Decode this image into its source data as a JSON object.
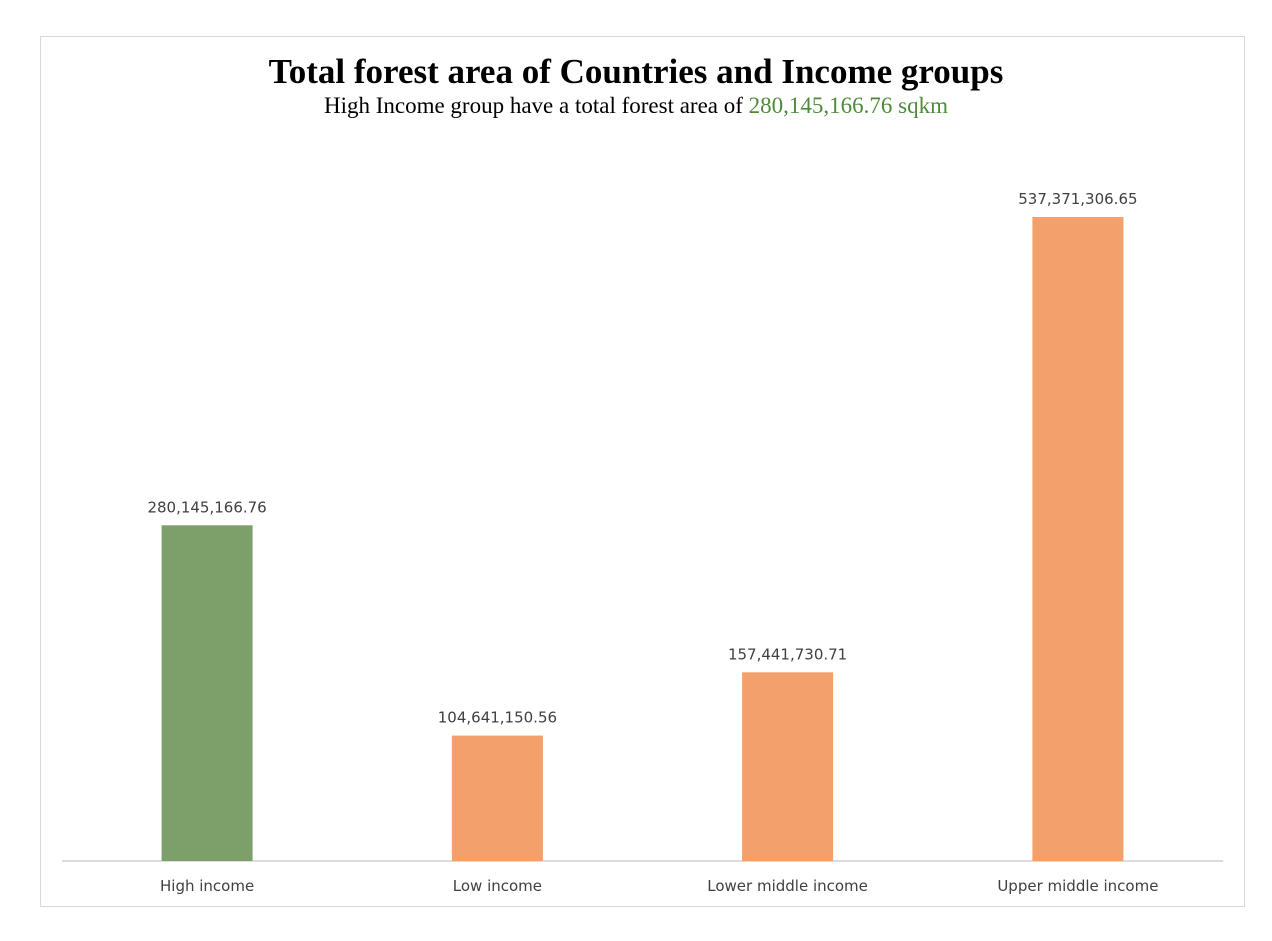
{
  "chart_data": {
    "type": "bar",
    "title": "Total forest area of Countries and Income groups",
    "subtitle": {
      "prefix": "High Income group have a total forest area of",
      "highlight": "280,145,166.76 sqkm"
    },
    "categories": [
      "High income",
      "Low income",
      "Lower middle income",
      "Upper middle income"
    ],
    "values": [
      280145166.76,
      104641150.56,
      157441730.71,
      537371306.65
    ],
    "data_labels": [
      "280,145,166.76",
      "104,641,150.56",
      "157,441,730.71",
      "537,371,306.65"
    ],
    "bar_colors": [
      "#7d9f6a",
      "#f4a06a",
      "#f4a06a",
      "#f4a06a"
    ],
    "highlight_color": "#4e8a3a",
    "xlabel": "",
    "ylabel": "",
    "grid": false,
    "legend": "none"
  }
}
